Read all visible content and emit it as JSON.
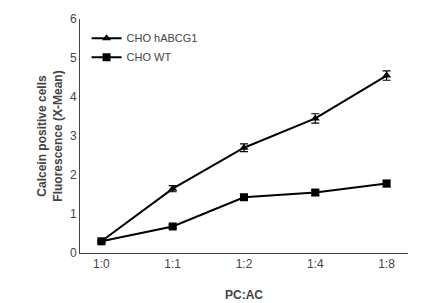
{
  "chart_data": {
    "type": "line",
    "xlabel": "PC:AC",
    "ylabel": "Calcein positive cells\nFluorescence (X-Mean)",
    "categories": [
      "1:0",
      "1:1",
      "1:2",
      "1:4",
      "1:8"
    ],
    "series": [
      {
        "name": "CHO hABCG1",
        "color": "#000000",
        "marker": "triangle-up",
        "values": [
          0.3,
          1.65,
          2.7,
          3.45,
          4.55
        ],
        "errors": [
          0.03,
          0.08,
          0.1,
          0.12,
          0.12
        ]
      },
      {
        "name": "CHO WT",
        "color": "#000000",
        "marker": "square",
        "values": [
          0.3,
          0.68,
          1.43,
          1.55,
          1.78
        ],
        "errors": [
          0.03,
          0.05,
          0.06,
          0.07,
          0.08
        ]
      }
    ],
    "ylim": [
      0,
      6
    ],
    "yticks": [
      0,
      1,
      2,
      3,
      4,
      5,
      6
    ],
    "grid": false,
    "legend": "upper left"
  }
}
